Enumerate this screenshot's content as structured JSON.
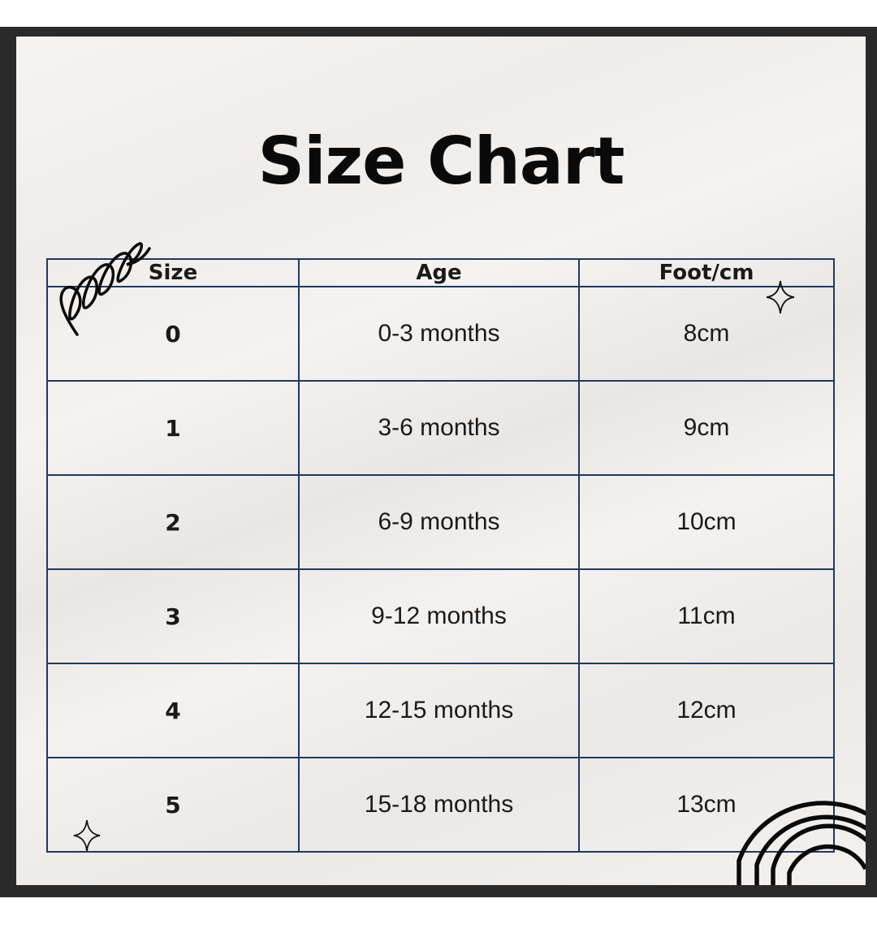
{
  "title": "Size Chart",
  "chart_data": {
    "type": "table",
    "title": "Size Chart",
    "columns": [
      "Size",
      "Age",
      "Foot/cm"
    ],
    "rows": [
      [
        "0",
        "0-3 months",
        "8cm"
      ],
      [
        "1",
        "3-6 months",
        "9cm"
      ],
      [
        "2",
        "6-9 months",
        "10cm"
      ],
      [
        "3",
        "9-12 months",
        "11cm"
      ],
      [
        "4",
        "12-15 months",
        "12cm"
      ],
      [
        "5",
        "15-18 months",
        "13cm"
      ]
    ]
  },
  "colors": {
    "frame": "#2a2a2a",
    "table_border": "#1e3a5c",
    "text": "#1a1a1a"
  },
  "decorations": [
    "spiral-doodle-icon",
    "sparkle-icon",
    "rainbow-arcs-icon"
  ]
}
